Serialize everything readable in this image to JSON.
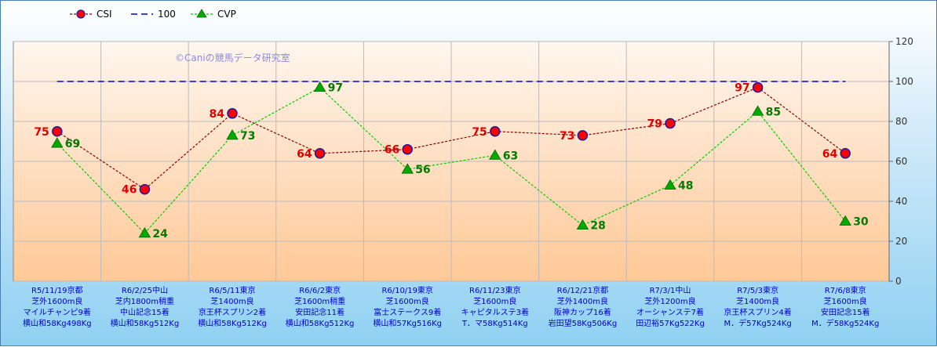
{
  "chart_data": {
    "type": "line",
    "title": "",
    "xlabel": "",
    "ylabel": "",
    "ylim": [
      0,
      120
    ],
    "yticks": [
      0,
      20,
      40,
      60,
      80,
      100,
      120
    ],
    "grid": true,
    "legend_position": "top-left",
    "watermark": "©Caniの競馬データ研究室",
    "categories": [
      [
        "R5/11/19京都",
        "芝外1600m良",
        "マイルチャンピ9着",
        "横山和58Kg498Kg"
      ],
      [
        "R6/2/25中山",
        "芝内1800m稍重",
        "中山記念15着",
        "横山和58Kg512Kg"
      ],
      [
        "R6/5/11東京",
        "芝1400m良",
        "京王杯スプリン2着",
        "横山和58Kg512Kg"
      ],
      [
        "R6/6/2東京",
        "芝1600m稍重",
        "安田記念11着",
        "横山和58Kg512Kg"
      ],
      [
        "R6/10/19東京",
        "芝1600m良",
        "富士ステークス9着",
        "横山和57Kg516Kg"
      ],
      [
        "R6/11/23東京",
        "芝1600m良",
        "キャピタルステ3着",
        "T．マ58Kg514Kg"
      ],
      [
        "R6/12/21京都",
        "芝外1400m良",
        "阪神カップ16着",
        "岩田望58Kg506Kg"
      ],
      [
        "R7/3/1中山",
        "芝外1200m良",
        "オーシャンステ7着",
        "田辺裕57Kg522Kg"
      ],
      [
        "R7/5/3東京",
        "芝1400m良",
        "京王杯スプリン4着",
        "M．デ57Kg524Kg"
      ],
      [
        "R7/6/8東京",
        "芝1600m良",
        "安田記念15着",
        "M．デ58Kg524Kg"
      ]
    ],
    "series": [
      {
        "name": "CSI",
        "values": [
          75,
          46,
          84,
          64,
          66,
          75,
          73,
          79,
          97,
          64
        ],
        "color": "#8b0000",
        "marker_color": "#ff0000",
        "marker": "circle",
        "line": "dotted"
      },
      {
        "name": "100",
        "values": [
          100,
          100,
          100,
          100,
          100,
          100,
          100,
          100,
          100,
          100
        ],
        "color": "#0000cc",
        "line": "dashed"
      },
      {
        "name": "CVP",
        "values": [
          69,
          24,
          73,
          97,
          56,
          63,
          28,
          48,
          85,
          30
        ],
        "color": "#00cc00",
        "marker_color": "#00aa00",
        "marker": "triangle",
        "line": "dotted"
      }
    ]
  }
}
